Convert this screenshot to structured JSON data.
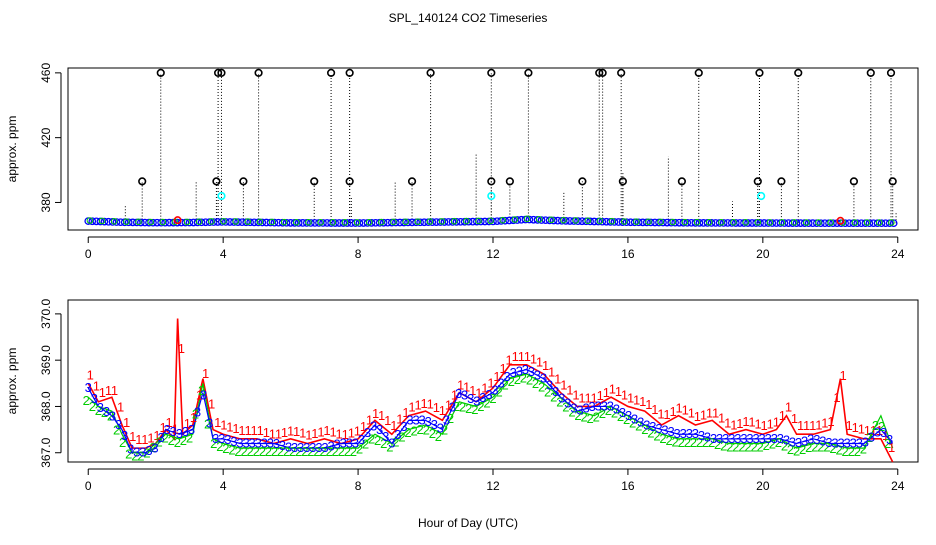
{
  "chart_data": {
    "title": "SPL_140124  CO2 Timeseries",
    "shared_xlabel": "Hour of Day (UTC)",
    "colors": {
      "raw": "#000000",
      "s1": "#ff0000",
      "s2": "#00cc00",
      "s3": "#0000ff",
      "avg": "#00ffff",
      "connector": "#000000"
    },
    "panels": [
      {
        "type": "line",
        "ylabel": "approx. ppm",
        "xlim": [
          -0.6,
          24.6
        ],
        "ylim": [
          363,
          463
        ],
        "xticks": [
          0,
          4,
          8,
          12,
          16,
          20,
          24
        ],
        "yticks": [
          380,
          420,
          460
        ],
        "baseline": [
          [
            0,
            368.5
          ],
          [
            1,
            367.8
          ],
          [
            2,
            367.5
          ],
          [
            3,
            367.6
          ],
          [
            4,
            368.0
          ],
          [
            6,
            367.4
          ],
          [
            8,
            367.3
          ],
          [
            10,
            367.8
          ],
          [
            12,
            368.3
          ],
          [
            13,
            369.5
          ],
          [
            14,
            368.7
          ],
          [
            16,
            367.8
          ],
          [
            18,
            367.4
          ],
          [
            20,
            367.3
          ],
          [
            22,
            367.2
          ],
          [
            24,
            367.2
          ]
        ],
        "outliers_high": [
          2.15,
          3.85,
          3.95,
          5.05,
          7.2,
          7.75,
          10.15,
          11.95,
          13.05,
          15.15,
          15.25,
          15.8,
          18.1,
          19.9,
          21.05,
          23.2,
          23.8
        ],
        "outliers_mid": [
          1.6,
          3.8,
          4.6,
          6.7,
          7.75,
          9.6,
          11.95,
          12.5,
          14.65,
          15.85,
          17.6,
          19.85,
          20.55,
          22.7,
          23.85
        ],
        "outliers_low": [
          1.1,
          3.2,
          3.85,
          7.8,
          9.1,
          11.5,
          14.1,
          15.85,
          17.2,
          19.1,
          19.85,
          23.95
        ],
        "avg_points": [
          [
            3.95,
            384
          ],
          [
            11.95,
            384
          ],
          [
            19.95,
            384
          ]
        ],
        "red_points": [
          2.65,
          22.3
        ],
        "high_value": 460,
        "mid_value": 393
      },
      {
        "type": "line",
        "ylabel": "approx. ppm",
        "xlim": [
          -0.6,
          24.6
        ],
        "ylim": [
          366.8,
          370.3
        ],
        "xticks": [
          0,
          4,
          8,
          12,
          16,
          20,
          24
        ],
        "yticks": [
          367.0,
          368.0,
          369.0,
          370.0
        ],
        "ytick_labels": [
          "367.0",
          "368.0",
          "369.0",
          "370.0"
        ],
        "series": [
          {
            "name": "1",
            "label": "1",
            "values": [
              [
                0,
                368.5
              ],
              [
                0.3,
                368.1
              ],
              [
                0.7,
                368.2
              ],
              [
                1.0,
                367.6
              ],
              [
                1.3,
                367.1
              ],
              [
                1.7,
                367.1
              ],
              [
                2.0,
                367.2
              ],
              [
                2.3,
                367.5
              ],
              [
                2.55,
                367.3
              ],
              [
                2.65,
                369.9
              ],
              [
                2.8,
                367.4
              ],
              [
                3.1,
                367.6
              ],
              [
                3.4,
                368.6
              ],
              [
                3.7,
                367.5
              ],
              [
                4.0,
                367.4
              ],
              [
                4.5,
                367.3
              ],
              [
                5,
                367.3
              ],
              [
                5.5,
                367.2
              ],
              [
                6,
                367.3
              ],
              [
                6.5,
                367.2
              ],
              [
                7,
                367.3
              ],
              [
                7.5,
                367.2
              ],
              [
                8,
                367.3
              ],
              [
                8.5,
                367.7
              ],
              [
                9,
                367.4
              ],
              [
                9.5,
                367.8
              ],
              [
                10,
                367.9
              ],
              [
                10.5,
                367.7
              ],
              [
                11,
                368.3
              ],
              [
                11.5,
                368.1
              ],
              [
                12,
                368.4
              ],
              [
                12.5,
                368.9
              ],
              [
                13,
                368.9
              ],
              [
                13.5,
                368.7
              ],
              [
                14,
                368.3
              ],
              [
                14.5,
                368.0
              ],
              [
                15,
                368.0
              ],
              [
                15.5,
                368.2
              ],
              [
                16,
                368.0
              ],
              [
                16.5,
                367.9
              ],
              [
                17,
                367.6
              ],
              [
                17.5,
                367.8
              ],
              [
                18,
                367.6
              ],
              [
                18.5,
                367.7
              ],
              [
                19,
                367.4
              ],
              [
                19.5,
                367.5
              ],
              [
                20,
                367.4
              ],
              [
                20.4,
                367.5
              ],
              [
                20.7,
                367.8
              ],
              [
                21,
                367.4
              ],
              [
                21.5,
                367.4
              ],
              [
                22,
                367.5
              ],
              [
                22.3,
                368.6
              ],
              [
                22.5,
                367.4
              ],
              [
                23,
                367.3
              ],
              [
                23.5,
                367.3
              ],
              [
                23.85,
                366.8
              ]
            ]
          },
          {
            "name": "2",
            "label": "2",
            "values": [
              [
                0,
                368.2
              ],
              [
                0.3,
                368.0
              ],
              [
                0.7,
                367.9
              ],
              [
                1.0,
                367.4
              ],
              [
                1.3,
                367.0
              ],
              [
                1.7,
                367.0
              ],
              [
                2.0,
                367.2
              ],
              [
                2.3,
                367.4
              ],
              [
                2.7,
                367.3
              ],
              [
                3.1,
                367.4
              ],
              [
                3.4,
                368.5
              ],
              [
                3.7,
                367.3
              ],
              [
                4.0,
                367.2
              ],
              [
                4.5,
                367.1
              ],
              [
                5,
                367.1
              ],
              [
                5.5,
                367.1
              ],
              [
                6,
                367.1
              ],
              [
                6.5,
                367.1
              ],
              [
                7,
                367.1
              ],
              [
                7.5,
                367.1
              ],
              [
                8,
                367.1
              ],
              [
                8.5,
                367.4
              ],
              [
                9,
                367.2
              ],
              [
                9.5,
                367.5
              ],
              [
                10,
                367.6
              ],
              [
                10.5,
                367.4
              ],
              [
                11,
                368.1
              ],
              [
                11.5,
                368.0
              ],
              [
                12,
                368.2
              ],
              [
                12.5,
                368.6
              ],
              [
                13,
                368.7
              ],
              [
                13.5,
                368.5
              ],
              [
                14,
                368.2
              ],
              [
                14.5,
                367.9
              ],
              [
                15,
                367.8
              ],
              [
                15.5,
                368.0
              ],
              [
                16,
                367.8
              ],
              [
                16.5,
                367.6
              ],
              [
                17,
                367.4
              ],
              [
                17.5,
                367.3
              ],
              [
                18,
                367.3
              ],
              [
                18.5,
                367.3
              ],
              [
                19,
                367.2
              ],
              [
                19.5,
                367.2
              ],
              [
                20,
                367.2
              ],
              [
                20.5,
                367.3
              ],
              [
                21,
                367.1
              ],
              [
                21.5,
                367.2
              ],
              [
                22,
                367.2
              ],
              [
                22.5,
                367.1
              ],
              [
                23,
                367.1
              ],
              [
                23.5,
                367.8
              ],
              [
                23.85,
                367.1
              ]
            ]
          },
          {
            "name": "3",
            "label": "3",
            "values": [
              [
                0,
                368.4
              ],
              [
                0.3,
                368.0
              ],
              [
                0.7,
                367.8
              ],
              [
                1.0,
                367.5
              ],
              [
                1.3,
                367.0
              ],
              [
                1.7,
                367.0
              ],
              [
                2.0,
                367.1
              ],
              [
                2.3,
                367.5
              ],
              [
                2.7,
                367.4
              ],
              [
                3.1,
                367.5
              ],
              [
                3.4,
                368.3
              ],
              [
                3.7,
                367.3
              ],
              [
                4.0,
                367.3
              ],
              [
                4.5,
                367.2
              ],
              [
                5,
                367.2
              ],
              [
                5.5,
                367.2
              ],
              [
                6,
                367.1
              ],
              [
                6.5,
                367.1
              ],
              [
                7,
                367.1
              ],
              [
                7.5,
                367.2
              ],
              [
                8,
                367.2
              ],
              [
                8.5,
                367.6
              ],
              [
                9,
                367.2
              ],
              [
                9.5,
                367.7
              ],
              [
                10,
                367.7
              ],
              [
                10.5,
                367.5
              ],
              [
                11,
                368.3
              ],
              [
                11.5,
                368.1
              ],
              [
                12,
                368.3
              ],
              [
                12.5,
                368.7
              ],
              [
                13,
                368.8
              ],
              [
                13.5,
                368.6
              ],
              [
                14,
                368.2
              ],
              [
                14.5,
                367.9
              ],
              [
                15,
                368.0
              ],
              [
                15.5,
                368.0
              ],
              [
                16,
                367.8
              ],
              [
                16.5,
                367.6
              ],
              [
                17,
                367.5
              ],
              [
                17.5,
                367.4
              ],
              [
                18,
                367.4
              ],
              [
                18.5,
                367.3
              ],
              [
                19,
                367.3
              ],
              [
                19.5,
                367.3
              ],
              [
                20,
                367.3
              ],
              [
                20.5,
                367.3
              ],
              [
                21,
                367.2
              ],
              [
                21.5,
                367.3
              ],
              [
                22,
                367.2
              ],
              [
                22.5,
                367.2
              ],
              [
                23,
                367.2
              ],
              [
                23.5,
                367.5
              ],
              [
                23.85,
                367.2
              ]
            ]
          }
        ]
      }
    ]
  }
}
